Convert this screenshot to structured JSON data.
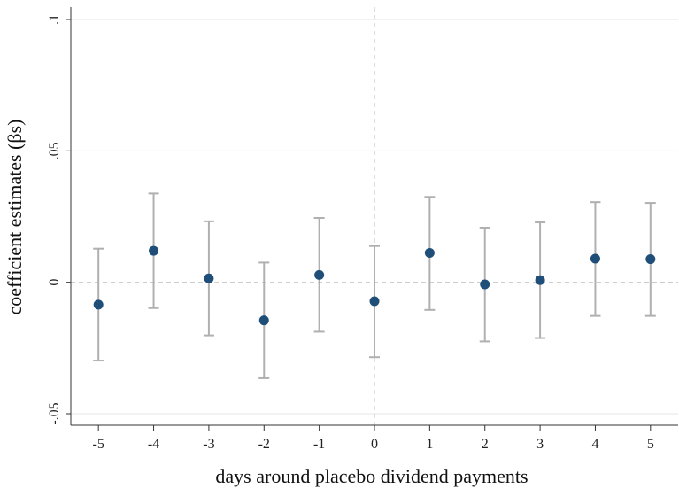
{
  "chart_data": {
    "type": "scatter",
    "title": "",
    "xlabel": "days around placebo dividend payments",
    "ylabel": "coefficient estimates (βs)",
    "xlim": [
      -5.5,
      5.5
    ],
    "ylim": [
      -0.05,
      0.1
    ],
    "x_ticks": [
      "-5",
      "-4",
      "-3",
      "-2",
      "-1",
      "0",
      "1",
      "2",
      "3",
      "4",
      "5"
    ],
    "y_ticks": [
      {
        "value": -0.05,
        "label": "-.05"
      },
      {
        "value": 0,
        "label": "0"
      },
      {
        "value": 0.05,
        "label": ".05"
      },
      {
        "value": 0.1,
        "label": ".1"
      }
    ],
    "grid": true,
    "reference_lines": {
      "x": 0,
      "y": 0
    },
    "colors": {
      "point": "#1f4e79",
      "error_bar": "#b0b0b0",
      "grid": "#e6e6e6",
      "reference": "#c8c8c8"
    },
    "points": [
      {
        "x": -5,
        "y": -0.0085,
        "lo": -0.0298,
        "hi": 0.0128
      },
      {
        "x": -4,
        "y": 0.012,
        "lo": -0.0098,
        "hi": 0.0338
      },
      {
        "x": -3,
        "y": 0.0015,
        "lo": -0.0202,
        "hi": 0.0232
      },
      {
        "x": -2,
        "y": -0.0145,
        "lo": -0.0365,
        "hi": 0.0075
      },
      {
        "x": -1,
        "y": 0.0028,
        "lo": -0.0188,
        "hi": 0.0245
      },
      {
        "x": 0,
        "y": -0.0072,
        "lo": -0.0285,
        "hi": 0.0138
      },
      {
        "x": 1,
        "y": 0.0112,
        "lo": -0.0105,
        "hi": 0.0325
      },
      {
        "x": 2,
        "y": -0.0008,
        "lo": -0.0225,
        "hi": 0.0208
      },
      {
        "x": 3,
        "y": 0.0008,
        "lo": -0.0212,
        "hi": 0.0228
      },
      {
        "x": 4,
        "y": 0.009,
        "lo": -0.0128,
        "hi": 0.0305
      },
      {
        "x": 5,
        "y": 0.0088,
        "lo": -0.0128,
        "hi": 0.0302
      }
    ]
  }
}
